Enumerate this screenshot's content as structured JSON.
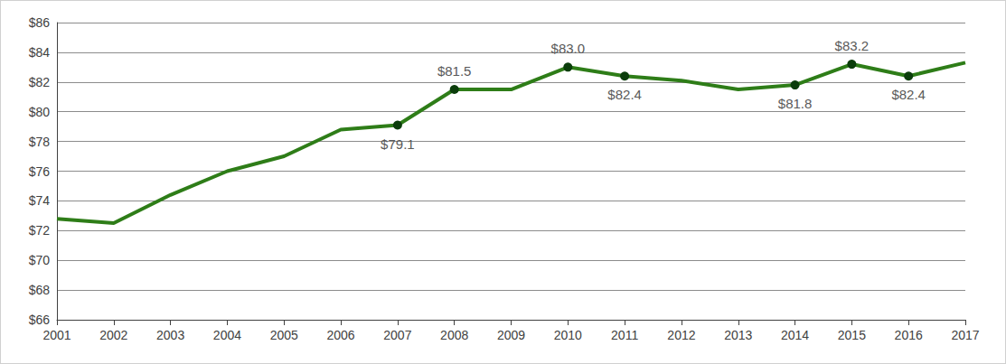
{
  "chart_data": {
    "type": "line",
    "categories": [
      "2001",
      "2002",
      "2003",
      "2004",
      "2005",
      "2006",
      "2007",
      "2008",
      "2009",
      "2010",
      "2011",
      "2012",
      "2013",
      "2014",
      "2015",
      "2016",
      "2017"
    ],
    "values": [
      72.8,
      72.5,
      74.4,
      76.0,
      77.0,
      78.8,
      79.1,
      81.5,
      81.5,
      83.0,
      82.4,
      82.1,
      81.5,
      81.8,
      83.2,
      82.4,
      83.3
    ],
    "value_labels": [
      null,
      null,
      null,
      null,
      null,
      null,
      "$79.1",
      "$81.5",
      null,
      "$83.0",
      "$82.4",
      null,
      null,
      "$81.8",
      "$83.2",
      "$82.4",
      null
    ],
    "color": "#2e7d18",
    "marker": "circle",
    "ylim": [
      66,
      86
    ],
    "yticks": [
      {
        "value": 66,
        "label": "$66"
      },
      {
        "value": 68,
        "label": "$68"
      },
      {
        "value": 70,
        "label": "$70"
      },
      {
        "value": 72,
        "label": "$72"
      },
      {
        "value": 74,
        "label": "$74"
      },
      {
        "value": 76,
        "label": "$76"
      },
      {
        "value": 78,
        "label": "$78"
      },
      {
        "value": 80,
        "label": "$80"
      },
      {
        "value": 82,
        "label": "$82"
      },
      {
        "value": 84,
        "label": "$84"
      },
      {
        "value": 86,
        "label": "$86"
      }
    ],
    "grid": true
  }
}
